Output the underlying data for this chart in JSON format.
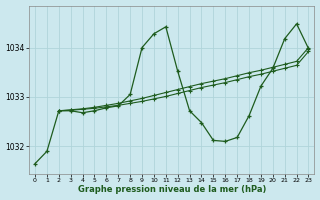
{
  "title": "Graphe pression niveau de la mer (hPa)",
  "background_color": "#cce8ee",
  "grid_color": "#b0d4da",
  "line_color": "#1e5c1e",
  "xlim": [
    -0.5,
    23.5
  ],
  "ylim": [
    1031.45,
    1034.85
  ],
  "yticks": [
    1032,
    1033,
    1034
  ],
  "xticks": [
    0,
    1,
    2,
    3,
    4,
    5,
    6,
    7,
    8,
    9,
    10,
    11,
    12,
    13,
    14,
    15,
    16,
    17,
    18,
    19,
    20,
    21,
    22,
    23
  ],
  "series1_x": [
    0,
    1,
    2,
    3,
    4,
    5,
    6,
    7,
    8,
    9,
    10,
    11,
    12,
    13,
    14,
    15,
    16,
    17,
    18,
    19,
    20,
    21,
    22,
    23
  ],
  "series1_y": [
    1031.65,
    1031.9,
    1032.72,
    1032.72,
    1032.68,
    1032.72,
    1032.78,
    1032.82,
    1033.05,
    1034.0,
    1034.28,
    1034.42,
    1033.52,
    1032.72,
    1032.48,
    1032.12,
    1032.1,
    1032.18,
    1032.62,
    1033.22,
    1033.58,
    1034.18,
    1034.48,
    1033.98
  ],
  "series2_x": [
    2,
    3,
    4,
    5,
    6,
    7,
    8,
    9,
    10,
    11,
    12,
    13,
    14,
    15,
    16,
    17,
    18,
    19,
    20,
    21,
    22,
    23
  ],
  "series2_y": [
    1032.72,
    1032.74,
    1032.76,
    1032.79,
    1032.83,
    1032.87,
    1032.92,
    1032.97,
    1033.03,
    1033.09,
    1033.15,
    1033.21,
    1033.27,
    1033.32,
    1033.37,
    1033.43,
    1033.49,
    1033.54,
    1033.6,
    1033.66,
    1033.72,
    1034.0
  ],
  "series3_x": [
    2,
    3,
    4,
    5,
    6,
    7,
    8,
    9,
    10,
    11,
    12,
    13,
    14,
    15,
    16,
    17,
    18,
    19,
    20,
    21,
    22,
    23
  ],
  "series3_y": [
    1032.72,
    1032.73,
    1032.75,
    1032.77,
    1032.8,
    1032.83,
    1032.87,
    1032.91,
    1032.96,
    1033.01,
    1033.07,
    1033.13,
    1033.19,
    1033.24,
    1033.29,
    1033.35,
    1033.41,
    1033.46,
    1033.52,
    1033.58,
    1033.64,
    1033.92
  ],
  "ytick_fontsize": 5.5,
  "xtick_fontsize": 4.5,
  "xlabel_fontsize": 6.0
}
